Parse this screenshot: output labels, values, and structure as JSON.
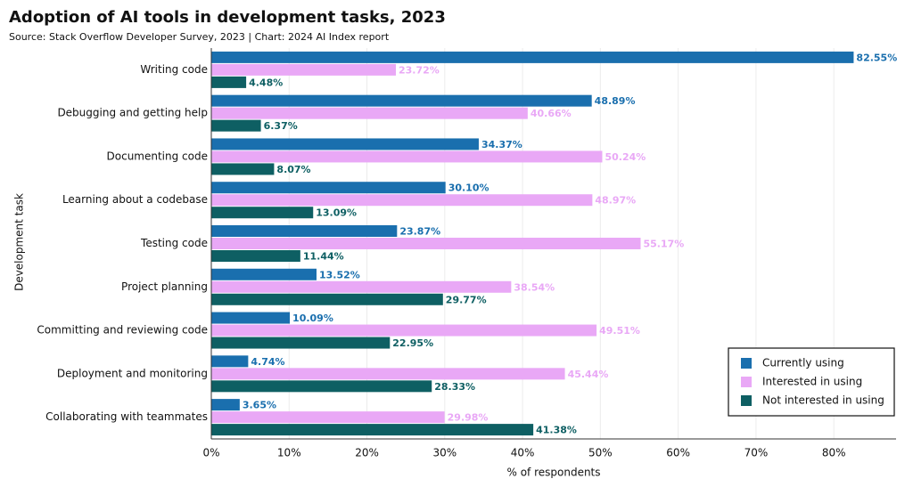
{
  "chart_data": {
    "type": "bar",
    "orientation": "horizontal",
    "title": "Adoption of AI tools in development tasks, 2023",
    "subtitle": "Source: Stack Overflow Developer Survey, 2023 | Chart: 2024 AI Index report",
    "x_label": "% of respondents",
    "y_label": "Development task",
    "categories": [
      "Writing code",
      "Debugging and getting help",
      "Documenting code",
      "Learning about a codebase",
      "Testing code",
      "Project planning",
      "Committing and reviewing code",
      "Deployment and monitoring",
      "Collaborating with teammates"
    ],
    "series": [
      {
        "name": "Currently using",
        "color": "#1a6fae",
        "values": [
          82.55,
          48.89,
          34.37,
          30.1,
          23.87,
          13.52,
          10.09,
          4.74,
          3.65
        ],
        "value_labels": [
          "82.55%",
          "48.89%",
          "34.37%",
          "30.10%",
          "23.87%",
          "13.52%",
          "10.09%",
          "4.74%",
          "3.65%"
        ]
      },
      {
        "name": "Interested in using",
        "color": "#e9a8f6",
        "values": [
          23.72,
          40.66,
          50.24,
          48.97,
          55.17,
          38.54,
          49.51,
          45.44,
          29.98
        ],
        "value_labels": [
          "23.72%",
          "40.66%",
          "50.24%",
          "48.97%",
          "55.17%",
          "38.54%",
          "49.51%",
          "45.44%",
          "29.98%"
        ]
      },
      {
        "name": "Not interested in using",
        "color": "#0e5f63",
        "values": [
          4.48,
          6.37,
          8.07,
          13.09,
          11.44,
          29.77,
          22.95,
          28.33,
          41.38
        ],
        "value_labels": [
          "4.48%",
          "6.37%",
          "8.07%",
          "13.09%",
          "11.44%",
          "29.77%",
          "22.95%",
          "28.33%",
          "41.38%"
        ]
      }
    ],
    "xlim": [
      0,
      88
    ],
    "xticks": [
      {
        "value": 0,
        "label": "0%"
      },
      {
        "value": 10,
        "label": "10%"
      },
      {
        "value": 20,
        "label": "20%"
      },
      {
        "value": 30,
        "label": "30%"
      },
      {
        "value": 40,
        "label": "40%"
      },
      {
        "value": 50,
        "label": "50%"
      },
      {
        "value": 60,
        "label": "60%"
      },
      {
        "value": 70,
        "label": "70%"
      },
      {
        "value": 80,
        "label": "80%"
      }
    ],
    "grid": true,
    "legend_position": "lower right"
  }
}
